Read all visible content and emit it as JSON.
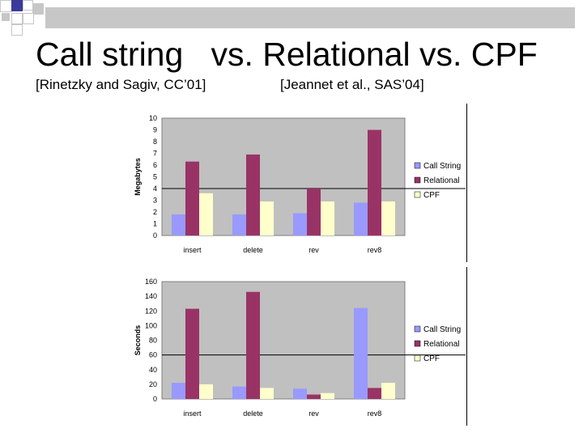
{
  "slide": {
    "title": "Call string   vs. Relational vs. CPF",
    "citation_left": "[Rinetzky and Sagiv, CC’01]",
    "citation_right": "[Jeannet et al., SAS’04]"
  },
  "colors": {
    "call_string": "#9999ff",
    "relational": "#993366",
    "cpf": "#ffffcc",
    "plot_bg": "#c0c0c0",
    "deco_gray": "#c7c7c7",
    "deco_dark": "#7a7a7a"
  },
  "chart_data": [
    {
      "type": "bar",
      "categories": [
        "insert",
        "delete",
        "rev",
        "rev8"
      ],
      "series": [
        {
          "name": "Call String",
          "values": [
            1.8,
            1.8,
            1.9,
            2.8
          ]
        },
        {
          "name": "Relational",
          "values": [
            6.3,
            6.9,
            4.0,
            9.0
          ]
        },
        {
          "name": "CPF",
          "values": [
            3.6,
            2.9,
            2.9,
            2.9
          ]
        }
      ],
      "ylabel": "Megabytes",
      "ylim": [
        0,
        10
      ],
      "yticks": [
        0,
        1,
        2,
        3,
        4,
        5,
        6,
        7,
        8,
        9,
        10
      ],
      "legend": [
        "Call String",
        "Relational",
        "CPF"
      ]
    },
    {
      "type": "bar",
      "categories": [
        "insert",
        "delete",
        "rev",
        "rev8"
      ],
      "series": [
        {
          "name": "Call String",
          "values": [
            22,
            17,
            14,
            124
          ]
        },
        {
          "name": "Relational",
          "values": [
            123,
            146,
            6,
            15
          ]
        },
        {
          "name": "CPF",
          "values": [
            20,
            15,
            8,
            22
          ]
        }
      ],
      "ylabel": "Seconds",
      "ylim": [
        0,
        160
      ],
      "yticks": [
        0,
        20,
        40,
        60,
        80,
        100,
        120,
        140,
        160
      ],
      "legend": [
        "Call String",
        "Relational",
        "CPF"
      ]
    }
  ]
}
